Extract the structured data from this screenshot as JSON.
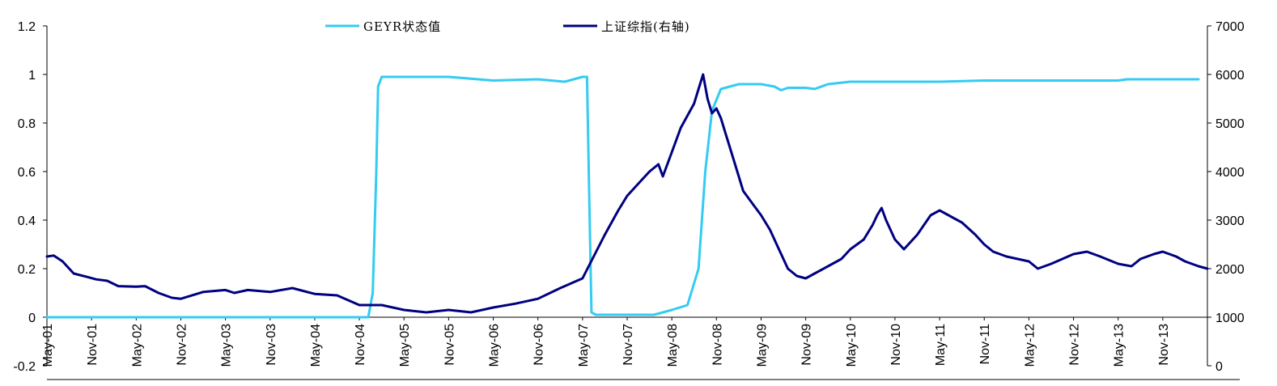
{
  "chart_data": {
    "type": "line",
    "title": "",
    "xlabel": "",
    "ylabel": "",
    "y2label": "",
    "x_categories": [
      "May-01",
      "Nov-01",
      "May-02",
      "Nov-02",
      "May-03",
      "Nov-03",
      "May-04",
      "Nov-04",
      "May-05",
      "Nov-05",
      "May-06",
      "Nov-06",
      "May-07",
      "Nov-07",
      "May-08",
      "Nov-08",
      "May-09",
      "Nov-09",
      "May-10",
      "Nov-10",
      "May-11",
      "Nov-11",
      "May-12",
      "Nov-12",
      "May-13",
      "Nov-13"
    ],
    "y_left": {
      "min": -0.2,
      "max": 1.2,
      "ticks": [
        -0.2,
        0,
        0.2,
        0.4,
        0.6,
        0.8,
        1,
        1.2
      ],
      "tick_labels": [
        "-0.2",
        "0",
        "0.2",
        "0.4",
        "0.6",
        "0.8",
        "1",
        "1.2"
      ]
    },
    "y_right": {
      "min": 0,
      "max": 7000,
      "ticks": [
        0,
        1000,
        2000,
        3000,
        4000,
        5000,
        6000,
        7000
      ],
      "tick_labels": [
        "0",
        "1000",
        "2000",
        "3000",
        "4000",
        "5000",
        "6000",
        "7000"
      ]
    },
    "legend_position": "top-center",
    "grid": false,
    "series": [
      {
        "name": "GEYR状态值",
        "axis": "left",
        "color": "#33CCF2",
        "points": [
          [
            0,
            0
          ],
          [
            3.5,
            0
          ],
          [
            7,
            0
          ],
          [
            7.2,
            0.0
          ],
          [
            7.3,
            0.1
          ],
          [
            7.38,
            0.6
          ],
          [
            7.42,
            0.95
          ],
          [
            7.5,
            0.99
          ],
          [
            8,
            0.99
          ],
          [
            9,
            0.99
          ],
          [
            10,
            0.975
          ],
          [
            11,
            0.98
          ],
          [
            11.6,
            0.97
          ],
          [
            12,
            0.99
          ],
          [
            12.1,
            0.99
          ],
          [
            12.15,
            0.5
          ],
          [
            12.2,
            0.02
          ],
          [
            12.3,
            0.01
          ],
          [
            13,
            0.01
          ],
          [
            13.6,
            0.01
          ],
          [
            14,
            0.03
          ],
          [
            14.35,
            0.05
          ],
          [
            14.6,
            0.2
          ],
          [
            14.75,
            0.6
          ],
          [
            14.9,
            0.85
          ],
          [
            15.1,
            0.94
          ],
          [
            15.5,
            0.96
          ],
          [
            16,
            0.96
          ],
          [
            16.3,
            0.95
          ],
          [
            16.45,
            0.935
          ],
          [
            16.6,
            0.945
          ],
          [
            17,
            0.945
          ],
          [
            17.2,
            0.94
          ],
          [
            17.5,
            0.96
          ],
          [
            18,
            0.97
          ],
          [
            20,
            0.97
          ],
          [
            21,
            0.975
          ],
          [
            22,
            0.975
          ],
          [
            23,
            0.975
          ],
          [
            24,
            0.975
          ],
          [
            24.2,
            0.98
          ],
          [
            25,
            0.98
          ],
          [
            25.8,
            0.98
          ]
        ]
      },
      {
        "name": "上证综指(右轴)",
        "axis": "right",
        "color": "#000080",
        "points": [
          [
            0,
            2250
          ],
          [
            0.15,
            2270
          ],
          [
            0.35,
            2150
          ],
          [
            0.6,
            1900
          ],
          [
            0.9,
            1830
          ],
          [
            1.1,
            1780
          ],
          [
            1.35,
            1750
          ],
          [
            1.6,
            1640
          ],
          [
            2,
            1630
          ],
          [
            2.2,
            1640
          ],
          [
            2.5,
            1500
          ],
          [
            2.8,
            1400
          ],
          [
            3,
            1380
          ],
          [
            3.5,
            1520
          ],
          [
            4,
            1560
          ],
          [
            4.2,
            1500
          ],
          [
            4.5,
            1560
          ],
          [
            5,
            1520
          ],
          [
            5.5,
            1600
          ],
          [
            6,
            1480
          ],
          [
            6.5,
            1450
          ],
          [
            7,
            1250
          ],
          [
            7.5,
            1250
          ],
          [
            8,
            1150
          ],
          [
            8.5,
            1100
          ],
          [
            9,
            1150
          ],
          [
            9.5,
            1100
          ],
          [
            10,
            1200
          ],
          [
            10.5,
            1280
          ],
          [
            11,
            1380
          ],
          [
            11.5,
            1600
          ],
          [
            12,
            1800
          ],
          [
            12.5,
            2700
          ],
          [
            12.8,
            3200
          ],
          [
            13,
            3500
          ],
          [
            13.3,
            3800
          ],
          [
            13.5,
            4000
          ],
          [
            13.7,
            4150
          ],
          [
            13.8,
            3900
          ],
          [
            14,
            4400
          ],
          [
            14.2,
            4900
          ],
          [
            14.5,
            5400
          ],
          [
            14.6,
            5700
          ],
          [
            14.7,
            6000
          ],
          [
            14.8,
            5500
          ],
          [
            14.9,
            5200
          ],
          [
            15.0,
            5300
          ],
          [
            15.1,
            5100
          ],
          [
            15.2,
            4800
          ],
          [
            15.4,
            4200
          ],
          [
            15.6,
            3600
          ],
          [
            15.8,
            3350
          ],
          [
            16,
            3100
          ],
          [
            16.2,
            2800
          ],
          [
            16.4,
            2400
          ],
          [
            16.6,
            2000
          ],
          [
            16.8,
            1850
          ],
          [
            17,
            1800
          ],
          [
            17.2,
            1900
          ],
          [
            17.5,
            2050
          ],
          [
            17.8,
            2200
          ],
          [
            18,
            2400
          ],
          [
            18.3,
            2600
          ],
          [
            18.5,
            2900
          ],
          [
            18.6,
            3100
          ],
          [
            18.7,
            3250
          ],
          [
            18.8,
            3000
          ],
          [
            19,
            2600
          ],
          [
            19.2,
            2400
          ],
          [
            19.5,
            2700
          ],
          [
            19.8,
            3100
          ],
          [
            20,
            3200
          ],
          [
            20.3,
            3050
          ],
          [
            20.5,
            2950
          ],
          [
            20.8,
            2700
          ],
          [
            21,
            2500
          ],
          [
            21.2,
            2350
          ],
          [
            21.5,
            2250
          ],
          [
            22,
            2150
          ],
          [
            22.2,
            2000
          ],
          [
            22.5,
            2100
          ],
          [
            23,
            2300
          ],
          [
            23.3,
            2350
          ],
          [
            23.6,
            2250
          ],
          [
            24,
            2100
          ],
          [
            24.3,
            2050
          ],
          [
            24.5,
            2200
          ],
          [
            24.8,
            2300
          ],
          [
            25,
            2350
          ],
          [
            25.3,
            2250
          ],
          [
            25.5,
            2150
          ],
          [
            25.8,
            2050
          ],
          [
            26,
            2000
          ]
        ]
      }
    ]
  }
}
